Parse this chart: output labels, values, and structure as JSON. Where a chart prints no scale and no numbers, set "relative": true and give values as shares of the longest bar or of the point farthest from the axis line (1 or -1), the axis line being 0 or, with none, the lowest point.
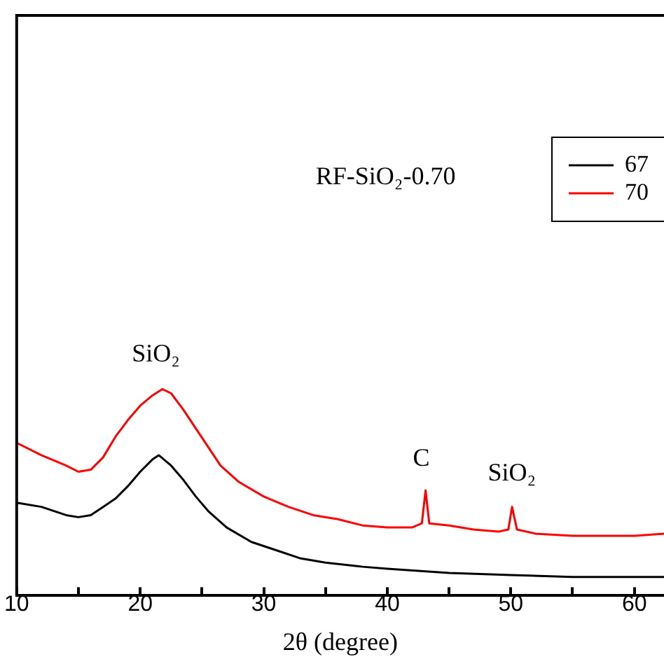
{
  "chart_data": {
    "type": "line",
    "relative": true,
    "xlabel": "2θ (degree)",
    "legend": "top right",
    "marker": "none",
    "line_style": "solid",
    "grid": false,
    "xlim": [
      10,
      62.4
    ],
    "xticks": [
      10,
      {
        "value": 15,
        "label": null
      },
      20,
      {
        "value": 25,
        "label": null
      },
      30,
      {
        "value": 35,
        "label": null
      },
      40,
      {
        "value": 45,
        "label": null
      },
      50,
      {
        "value": 55,
        "label": null
      },
      60
    ],
    "annotations": [
      "RF-SiO₂-0.70",
      "SiO₂",
      "C",
      "SiO₂"
    ],
    "series": [
      {
        "name": "67",
        "color": "#000000",
        "x": [
          10,
          12,
          14,
          15,
          16,
          17,
          18,
          19,
          20,
          21,
          21.5,
          22.5,
          23.5,
          24.5,
          25.5,
          27,
          29,
          31,
          33,
          35,
          38,
          40,
          45,
          50,
          55,
          60,
          62.4
        ],
        "values": [
          0.45,
          0.43,
          0.39,
          0.38,
          0.39,
          0.43,
          0.47,
          0.53,
          0.6,
          0.66,
          0.68,
          0.63,
          0.56,
          0.48,
          0.41,
          0.33,
          0.26,
          0.22,
          0.18,
          0.16,
          0.14,
          0.13,
          0.11,
          0.1,
          0.09,
          0.09,
          0.09
        ]
      },
      {
        "name": "70",
        "color": "#ff0000",
        "x": [
          10,
          12,
          14,
          15,
          16,
          17,
          18,
          19,
          20,
          21,
          21.8,
          22.5,
          23.5,
          24.5,
          25.5,
          26.5,
          28,
          30,
          32,
          34,
          36,
          38,
          40,
          42,
          42.8,
          43.1,
          43.4,
          45,
          47,
          49,
          49.8,
          50.1,
          50.5,
          52,
          55,
          58,
          60,
          62.4
        ],
        "values": [
          0.74,
          0.68,
          0.63,
          0.6,
          0.61,
          0.67,
          0.77,
          0.85,
          0.92,
          0.97,
          1,
          0.98,
          0.9,
          0.81,
          0.72,
          0.63,
          0.55,
          0.48,
          0.43,
          0.39,
          0.37,
          0.34,
          0.33,
          0.33,
          0.35,
          0.51,
          0.35,
          0.34,
          0.32,
          0.31,
          0.32,
          0.43,
          0.32,
          0.3,
          0.29,
          0.29,
          0.29,
          0.3
        ]
      }
    ]
  }
}
